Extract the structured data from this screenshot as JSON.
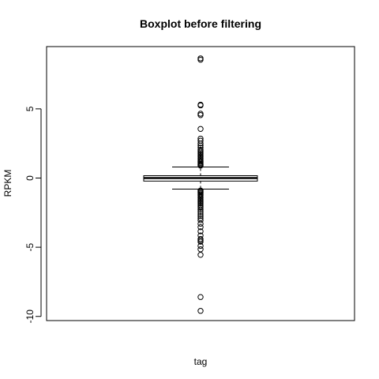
{
  "chart_data": {
    "type": "boxplot",
    "title": "Boxplot before filtering",
    "xlabel": "tag",
    "ylabel": "RPKM",
    "ylim": [
      -10.3,
      9.5
    ],
    "y_ticks": [
      -10,
      -5,
      0,
      5
    ],
    "y_tick_labels": [
      "-10",
      "-5",
      "0",
      "5"
    ],
    "categories": [
      "tag"
    ],
    "box": {
      "whisker_low": -0.8,
      "q1": -0.22,
      "median": 0.0,
      "q3": 0.17,
      "whisker_high": 0.8
    },
    "outliers": [
      8.65,
      8.55,
      5.3,
      5.25,
      4.65,
      4.55,
      3.55,
      2.85,
      2.7,
      2.5,
      2.35,
      2.2,
      2.05,
      1.95,
      1.85,
      1.75,
      1.65,
      1.55,
      1.45,
      1.35,
      1.25,
      1.18,
      1.1,
      1.02,
      0.95,
      0.9,
      -0.9,
      -0.95,
      -1.02,
      -1.1,
      -1.18,
      -1.25,
      -1.35,
      -1.45,
      -1.55,
      -1.65,
      -1.75,
      -1.85,
      -1.95,
      -2.05,
      -2.15,
      -2.3,
      -2.45,
      -2.6,
      -2.75,
      -2.9,
      -3.05,
      -3.3,
      -3.55,
      -3.85,
      -4.15,
      -4.4,
      -4.5,
      -4.6,
      -4.9,
      -5.15,
      -5.55,
      -8.6,
      -9.6
    ],
    "grid": false,
    "legend": "none"
  }
}
